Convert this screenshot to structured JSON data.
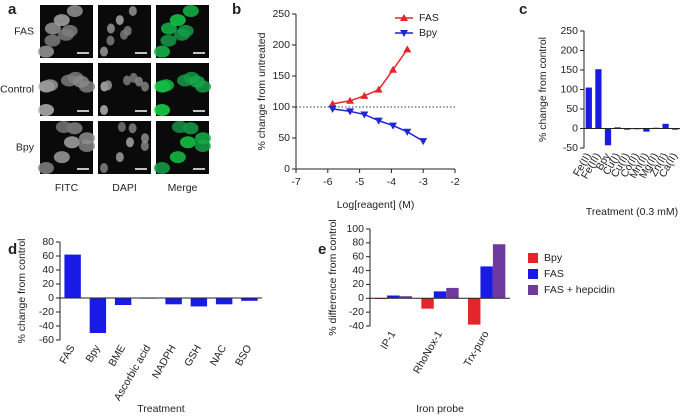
{
  "panel_a": {
    "panel_label": "a",
    "rows": [
      "FAS",
      "Control",
      "Bpy"
    ],
    "columns": [
      "FITC",
      "DAPI",
      "Merge"
    ]
  },
  "chart_data": [
    {
      "type": "line",
      "panel_label": "b",
      "x_label": "Log[reagent] (M)",
      "y_label": "% change from untreated",
      "xlim": [
        -7,
        -2
      ],
      "xticks": [
        -7,
        -6,
        -5,
        -4,
        -3,
        -2
      ],
      "ylim": [
        0,
        250
      ],
      "yticks": [
        0,
        50,
        100,
        150,
        200,
        250
      ],
      "hline": 100,
      "legend": "upper right",
      "series": [
        {
          "name": "FAS",
          "color": "#e3262b",
          "marker": "triangle-up",
          "x": [
            -5.85,
            -5.3,
            -4.85,
            -4.4,
            -3.95,
            -3.5
          ],
          "values": [
            105,
            110,
            118,
            128,
            160,
            193
          ]
        },
        {
          "name": "Bpy",
          "color": "#1f26d6",
          "marker": "triangle-down",
          "x": [
            -5.85,
            -5.3,
            -4.85,
            -4.4,
            -3.95,
            -3.5,
            -3.0
          ],
          "values": [
            97,
            93,
            88,
            78,
            70,
            60,
            45
          ]
        }
      ]
    },
    {
      "type": "bar",
      "panel_label": "c",
      "x_label": "Treatment (0.3 mM)",
      "y_label": "% change from control",
      "categories": [
        "Fe(II)",
        "Fe(III)",
        "Bpy",
        "Cu(I)",
        "Cu(II)",
        "Co(II)",
        "Mn(II)",
        "Mg(II)",
        "Zn(II)",
        "Ca(II)"
      ],
      "values": [
        105,
        152,
        -43,
        3,
        -3,
        -2,
        -8,
        2,
        12,
        -3
      ],
      "color": "#1a1ae6",
      "ylim": [
        -50,
        250
      ],
      "yticks": [
        -50,
        0,
        50,
        100,
        150,
        200,
        250
      ]
    },
    {
      "type": "bar",
      "panel_label": "d",
      "x_label": "Treatment",
      "y_label": "% change from control",
      "categories": [
        "FAS",
        "Bpy",
        "BME",
        "Ascorbic acid",
        "NADPH",
        "GSH",
        "NAC",
        "BSO"
      ],
      "values": [
        62,
        -50,
        -10,
        0,
        -9,
        -12,
        -9,
        -4
      ],
      "color": "#1a1ae6",
      "ylim": [
        -60,
        80
      ],
      "yticks": [
        -60,
        -40,
        -20,
        0,
        20,
        40,
        60,
        80
      ]
    },
    {
      "type": "bar",
      "panel_label": "e",
      "x_label": "Iron probe",
      "y_label": "% difference from control",
      "categories": [
        "IP-1",
        "RhoNox-1",
        "Trx-puro"
      ],
      "legend": "right",
      "series": [
        {
          "name": "Bpy",
          "color": "#e3262b",
          "values": [
            -1,
            -15,
            -38
          ]
        },
        {
          "name": "FAS",
          "color": "#1a1ae6",
          "values": [
            4,
            10,
            46
          ]
        },
        {
          "name": "FAS + hepcidin",
          "color": "#6f3a9e",
          "values": [
            3,
            15,
            78
          ]
        }
      ],
      "ylim": [
        -40,
        100
      ],
      "yticks": [
        -40,
        -20,
        0,
        20,
        40,
        60,
        80,
        100
      ]
    }
  ]
}
